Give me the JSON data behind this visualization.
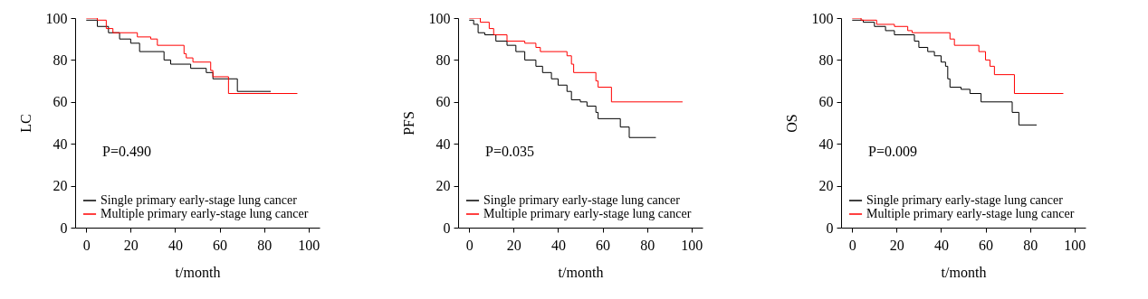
{
  "chart_data": [
    {
      "type": "step",
      "ylabel": "LC",
      "xlabel": "t/month",
      "xlim": [
        -5,
        105
      ],
      "ylim": [
        0,
        100
      ],
      "xticks": [
        0,
        20,
        40,
        60,
        80,
        100
      ],
      "yticks": [
        0,
        20,
        40,
        60,
        80,
        100
      ],
      "legend": "bottom left",
      "annotations": [
        "P=0.490"
      ],
      "series": [
        {
          "name": "Single primary early-stage lung cancer",
          "color": "#000000",
          "x": [
            0,
            5,
            10,
            15,
            20,
            24,
            35,
            38,
            47,
            54,
            57,
            68,
            83
          ],
          "values": [
            99,
            96,
            93,
            90,
            88,
            84,
            80,
            78,
            76,
            74,
            71,
            65,
            65
          ]
        },
        {
          "name": "Multiple primary early-stage lung cancer",
          "color": "#ff0000",
          "x": [
            0,
            5,
            9,
            12,
            23,
            29,
            32,
            44,
            45,
            48,
            56,
            57,
            64,
            95
          ],
          "values": [
            100,
            99,
            95,
            93,
            91,
            90,
            87,
            83,
            81,
            79,
            75,
            72,
            64,
            64
          ]
        }
      ]
    },
    {
      "type": "step",
      "ylabel": "PFS",
      "xlabel": "t/month",
      "xlim": [
        -5,
        105
      ],
      "ylim": [
        0,
        100
      ],
      "xticks": [
        0,
        20,
        40,
        60,
        80,
        100
      ],
      "yticks": [
        0,
        20,
        40,
        60,
        80,
        100
      ],
      "legend": "bottom left",
      "annotations": [
        "P=0.035"
      ],
      "series": [
        {
          "name": "Single primary early-stage lung cancer",
          "color": "#000000",
          "x": [
            0,
            2,
            4,
            7,
            12,
            17,
            21,
            25,
            30,
            33,
            37,
            40,
            44,
            46,
            50,
            53,
            57,
            58,
            68,
            72,
            84
          ],
          "values": [
            99,
            97,
            93,
            92,
            89,
            87,
            84,
            80,
            77,
            74,
            71,
            68,
            65,
            61,
            60,
            58,
            55,
            52,
            48,
            43,
            43
          ]
        },
        {
          "name": "Multiple primary early-stage lung cancer",
          "color": "#ff0000",
          "x": [
            0,
            5,
            9,
            11,
            17,
            25,
            30,
            32,
            44,
            46,
            47,
            57,
            58,
            64,
            96
          ],
          "values": [
            100,
            98,
            95,
            92,
            89,
            88,
            86,
            84,
            82,
            78,
            74,
            70,
            67,
            60,
            60
          ]
        }
      ]
    },
    {
      "type": "step",
      "ylabel": "OS",
      "xlabel": "t/month",
      "xlim": [
        -5,
        105
      ],
      "ylim": [
        0,
        100
      ],
      "xticks": [
        0,
        20,
        40,
        60,
        80,
        100
      ],
      "yticks": [
        0,
        20,
        40,
        60,
        80,
        100
      ],
      "legend": "bottom left",
      "annotations": [
        "P=0.009"
      ],
      "series": [
        {
          "name": "Single primary early-stage lung cancer",
          "color": "#000000",
          "x": [
            0,
            5,
            10,
            15,
            19,
            28,
            30,
            34,
            37,
            40,
            42,
            43,
            44,
            49,
            53,
            58,
            72,
            75,
            83
          ],
          "values": [
            99,
            98,
            96,
            94,
            92,
            89,
            86,
            84,
            82,
            79,
            77,
            71,
            67,
            66,
            64,
            60,
            55,
            49,
            49
          ]
        },
        {
          "name": "Multiple primary early-stage lung cancer",
          "color": "#ff0000",
          "x": [
            0,
            4,
            11,
            19,
            25,
            27,
            44,
            46,
            57,
            60,
            62,
            64,
            73,
            95
          ],
          "values": [
            100,
            99,
            97,
            96,
            94,
            93,
            90,
            87,
            84,
            80,
            77,
            73,
            64,
            64
          ]
        }
      ]
    }
  ]
}
